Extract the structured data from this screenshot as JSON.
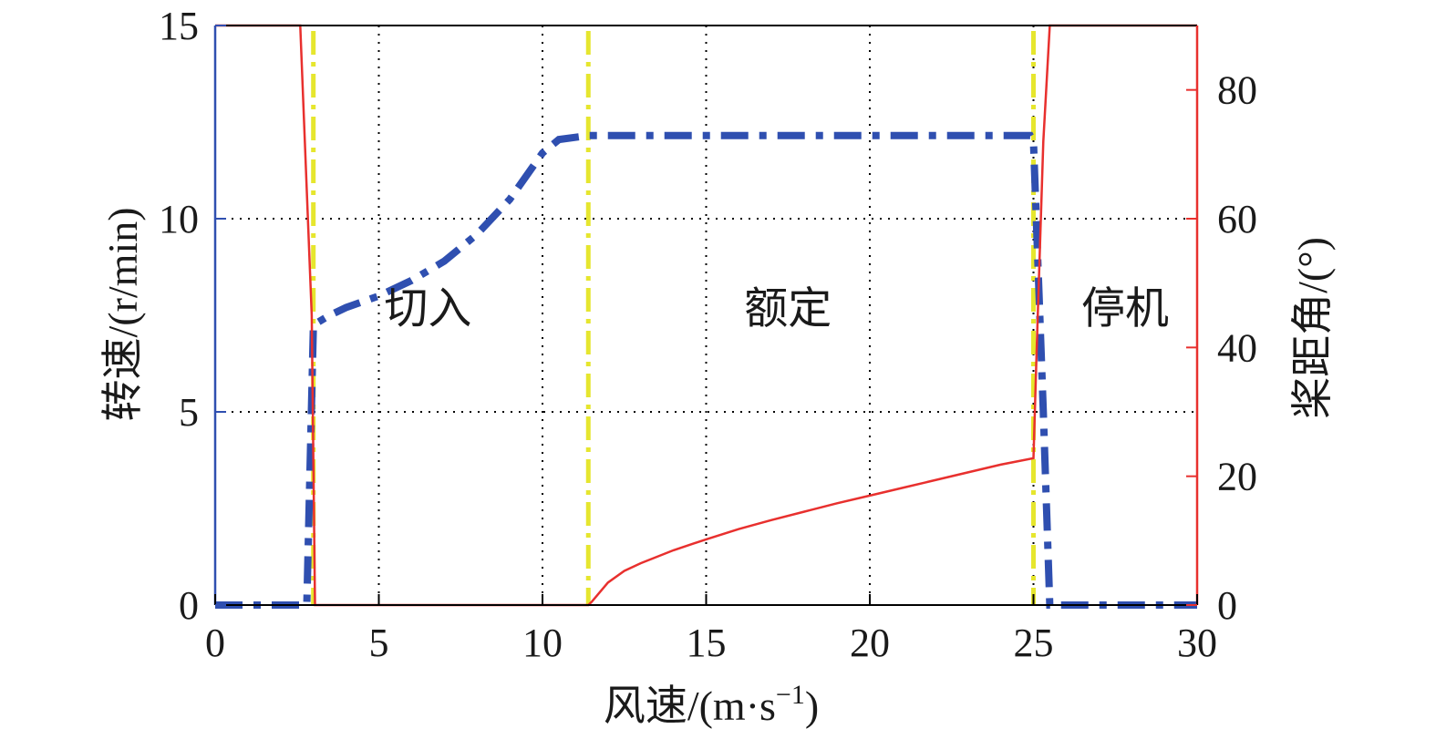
{
  "chart_data": {
    "type": "line",
    "title": "",
    "xlabel": "风速/(m·s",
    "xlabel_sup": "−1",
    "xlabel_close": ")",
    "ylabel_left": "转速/(r/min)",
    "ylabel_right": "桨距角/(°)",
    "xlim": [
      0,
      30
    ],
    "ylim_left": [
      0,
      15
    ],
    "ylim_right": [
      0,
      90
    ],
    "x_ticks": [
      "0",
      "5",
      "10",
      "15",
      "20",
      "25",
      "30"
    ],
    "x_tick_values": [
      0,
      5,
      10,
      15,
      20,
      25,
      30
    ],
    "y_left_ticks": [
      "0",
      "5",
      "10",
      "15"
    ],
    "y_left_tick_values": [
      0,
      5,
      10,
      15
    ],
    "y_right_ticks": [
      "0",
      "20",
      "40",
      "60",
      "80"
    ],
    "y_right_tick_values": [
      0,
      20,
      40,
      60,
      80
    ],
    "grid": true,
    "regions": [
      {
        "label": "切入",
        "x": 6.5,
        "y": 7.3
      },
      {
        "label": "额定",
        "x": 17.5,
        "y": 7.3
      },
      {
        "label": "停机",
        "x": 27.8,
        "y": 7.3
      }
    ],
    "vertical_markers": {
      "color": "#e6e62e",
      "x": [
        3.0,
        11.4,
        25.0
      ]
    },
    "series": [
      {
        "axis": "left",
        "color": "#2f4fb0",
        "style": "dash-dot",
        "points": [
          [
            0,
            0
          ],
          [
            2.8,
            0
          ],
          [
            3.0,
            7.2
          ],
          [
            3.1,
            7.3
          ],
          [
            3.5,
            7.5
          ],
          [
            4.0,
            7.7
          ],
          [
            5.0,
            8.0
          ],
          [
            6.0,
            8.4
          ],
          [
            7.0,
            8.9
          ],
          [
            8.0,
            9.6
          ],
          [
            9.0,
            10.5
          ],
          [
            9.5,
            11.1
          ],
          [
            10.0,
            11.7
          ],
          [
            10.5,
            12.05
          ],
          [
            11.4,
            12.15
          ],
          [
            24.9,
            12.15
          ],
          [
            25.0,
            12.0
          ],
          [
            25.3,
            5.0
          ],
          [
            25.5,
            0
          ],
          [
            30,
            0
          ]
        ]
      },
      {
        "axis": "right",
        "color": "#e8302e",
        "style": "solid",
        "points": [
          [
            0,
            90
          ],
          [
            2.6,
            90
          ],
          [
            2.95,
            45
          ],
          [
            3.05,
            0
          ],
          [
            11.4,
            0
          ],
          [
            11.5,
            0.5
          ],
          [
            12.0,
            3.5
          ],
          [
            12.5,
            5.3
          ],
          [
            13,
            6.5
          ],
          [
            14,
            8.5
          ],
          [
            15,
            10.2
          ],
          [
            16,
            11.8
          ],
          [
            17,
            13.2
          ],
          [
            18,
            14.5
          ],
          [
            19,
            15.8
          ],
          [
            20,
            17.0
          ],
          [
            21,
            18.2
          ],
          [
            22,
            19.4
          ],
          [
            23,
            20.6
          ],
          [
            24,
            21.8
          ],
          [
            25,
            22.8
          ],
          [
            25.1,
            40.0
          ],
          [
            25.3,
            72.0
          ],
          [
            25.5,
            90
          ],
          [
            30,
            90
          ]
        ]
      }
    ]
  }
}
